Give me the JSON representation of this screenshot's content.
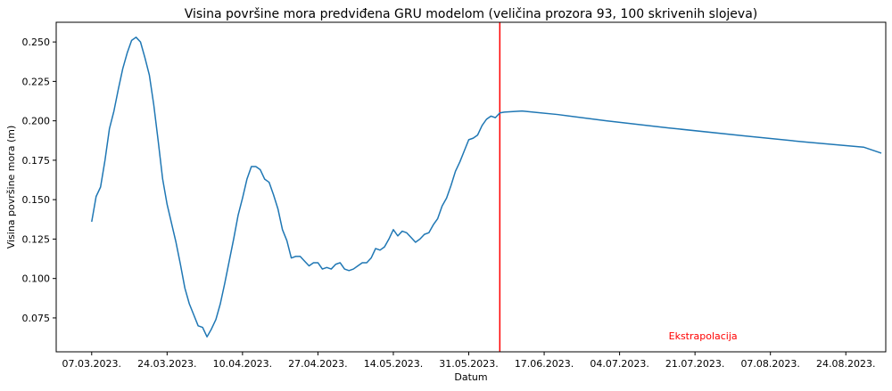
{
  "chart_data": {
    "type": "line",
    "title": "Visina površine mora predviđena GRU modelom (veličina prozora 93, 100 skrivenih slojeva)",
    "xlabel": "Datum",
    "ylabel": "Visina površine mora (m)",
    "x_ticks": [
      {
        "date": "2023-03-07",
        "label": "07.03.2023."
      },
      {
        "date": "2023-03-24",
        "label": "24.03.2023."
      },
      {
        "date": "2023-04-10",
        "label": "10.04.2023."
      },
      {
        "date": "2023-04-27",
        "label": "27.04.2023."
      },
      {
        "date": "2023-05-14",
        "label": "14.05.2023."
      },
      {
        "date": "2023-05-31",
        "label": "31.05.2023."
      },
      {
        "date": "2023-06-17",
        "label": "17.06.2023."
      },
      {
        "date": "2023-07-04",
        "label": "04.07.2023."
      },
      {
        "date": "2023-07-21",
        "label": "21.07.2023."
      },
      {
        "date": "2023-08-07",
        "label": "07.08.2023."
      },
      {
        "date": "2023-08-24",
        "label": "24.08.2023."
      }
    ],
    "y_ticks": [
      0.075,
      0.1,
      0.125,
      0.15,
      0.175,
      0.2,
      0.225,
      0.25
    ],
    "y_tick_labels": [
      "0.075",
      "0.100",
      "0.125",
      "0.150",
      "0.175",
      "0.200",
      "0.225",
      "0.250"
    ],
    "xlim": [
      "2023-02-27",
      "2023-09-02"
    ],
    "ylim": [
      0.0535,
      0.2625
    ],
    "grid": false,
    "series": [
      {
        "color": "#1f77b4",
        "points": [
          [
            "2023-03-07",
            0.136
          ],
          [
            "2023-03-08",
            0.152
          ],
          [
            "2023-03-09",
            0.158
          ],
          [
            "2023-03-10",
            0.175
          ],
          [
            "2023-03-11",
            0.195
          ],
          [
            "2023-03-12",
            0.206
          ],
          [
            "2023-03-13",
            0.22
          ],
          [
            "2023-03-14",
            0.233
          ],
          [
            "2023-03-15",
            0.243
          ],
          [
            "2023-03-16",
            0.251
          ],
          [
            "2023-03-17",
            0.253
          ],
          [
            "2023-03-18",
            0.25
          ],
          [
            "2023-03-19",
            0.24
          ],
          [
            "2023-03-20",
            0.229
          ],
          [
            "2023-03-21",
            0.21
          ],
          [
            "2023-03-22",
            0.187
          ],
          [
            "2023-03-23",
            0.163
          ],
          [
            "2023-03-24",
            0.147
          ],
          [
            "2023-03-25",
            0.135
          ],
          [
            "2023-03-26",
            0.123
          ],
          [
            "2023-03-27",
            0.109
          ],
          [
            "2023-03-28",
            0.094
          ],
          [
            "2023-03-29",
            0.084
          ],
          [
            "2023-03-30",
            0.077
          ],
          [
            "2023-03-31",
            0.07
          ],
          [
            "2023-04-01",
            0.069
          ],
          [
            "2023-04-02",
            0.063
          ],
          [
            "2023-04-03",
            0.068
          ],
          [
            "2023-04-04",
            0.074
          ],
          [
            "2023-04-05",
            0.084
          ],
          [
            "2023-04-06",
            0.097
          ],
          [
            "2023-04-07",
            0.111
          ],
          [
            "2023-04-08",
            0.125
          ],
          [
            "2023-04-09",
            0.14
          ],
          [
            "2023-04-10",
            0.151
          ],
          [
            "2023-04-11",
            0.163
          ],
          [
            "2023-04-12",
            0.171
          ],
          [
            "2023-04-13",
            0.171
          ],
          [
            "2023-04-14",
            0.169
          ],
          [
            "2023-04-15",
            0.163
          ],
          [
            "2023-04-16",
            0.161
          ],
          [
            "2023-04-17",
            0.153
          ],
          [
            "2023-04-18",
            0.144
          ],
          [
            "2023-04-19",
            0.131
          ],
          [
            "2023-04-20",
            0.124
          ],
          [
            "2023-04-21",
            0.113
          ],
          [
            "2023-04-22",
            0.114
          ],
          [
            "2023-04-23",
            0.114
          ],
          [
            "2023-04-24",
            0.111
          ],
          [
            "2023-04-25",
            0.108
          ],
          [
            "2023-04-26",
            0.11
          ],
          [
            "2023-04-27",
            0.11
          ],
          [
            "2023-04-28",
            0.106
          ],
          [
            "2023-04-29",
            0.107
          ],
          [
            "2023-04-30",
            0.106
          ],
          [
            "2023-05-01",
            0.109
          ],
          [
            "2023-05-02",
            0.11
          ],
          [
            "2023-05-03",
            0.106
          ],
          [
            "2023-05-04",
            0.105
          ],
          [
            "2023-05-05",
            0.106
          ],
          [
            "2023-05-06",
            0.108
          ],
          [
            "2023-05-07",
            0.11
          ],
          [
            "2023-05-08",
            0.11
          ],
          [
            "2023-05-09",
            0.113
          ],
          [
            "2023-05-10",
            0.119
          ],
          [
            "2023-05-11",
            0.118
          ],
          [
            "2023-05-12",
            0.12
          ],
          [
            "2023-05-13",
            0.125
          ],
          [
            "2023-05-14",
            0.131
          ],
          [
            "2023-05-15",
            0.127
          ],
          [
            "2023-05-16",
            0.13
          ],
          [
            "2023-05-17",
            0.129
          ],
          [
            "2023-05-18",
            0.126
          ],
          [
            "2023-05-19",
            0.123
          ],
          [
            "2023-05-20",
            0.125
          ],
          [
            "2023-05-21",
            0.128
          ],
          [
            "2023-05-22",
            0.129
          ],
          [
            "2023-05-23",
            0.134
          ],
          [
            "2023-05-24",
            0.138
          ],
          [
            "2023-05-25",
            0.146
          ],
          [
            "2023-05-26",
            0.151
          ],
          [
            "2023-05-27",
            0.159
          ],
          [
            "2023-05-28",
            0.168
          ],
          [
            "2023-05-29",
            0.174
          ],
          [
            "2023-05-30",
            0.181
          ],
          [
            "2023-05-31",
            0.188
          ],
          [
            "2023-06-01",
            0.189
          ],
          [
            "2023-06-02",
            0.191
          ],
          [
            "2023-06-03",
            0.197
          ],
          [
            "2023-06-04",
            0.201
          ],
          [
            "2023-06-05",
            0.203
          ],
          [
            "2023-06-06",
            0.202
          ],
          [
            "2023-06-07",
            0.205
          ],
          [
            "2023-06-08",
            0.2055
          ],
          [
            "2023-06-12",
            0.2062
          ],
          [
            "2023-06-20",
            0.204
          ],
          [
            "2023-07-01",
            0.2
          ],
          [
            "2023-07-15",
            0.1955
          ],
          [
            "2023-08-01",
            0.1905
          ],
          [
            "2023-08-15",
            0.1865
          ],
          [
            "2023-08-28",
            0.1833
          ],
          [
            "2023-09-01",
            0.1795
          ]
        ]
      }
    ],
    "vline": {
      "date": "2023-06-07",
      "color": "#ff0000"
    },
    "annotation": {
      "text": "Ekstrapolacija",
      "date": "2023-07-21",
      "value": 0.0615,
      "color": "#ff0000"
    }
  }
}
